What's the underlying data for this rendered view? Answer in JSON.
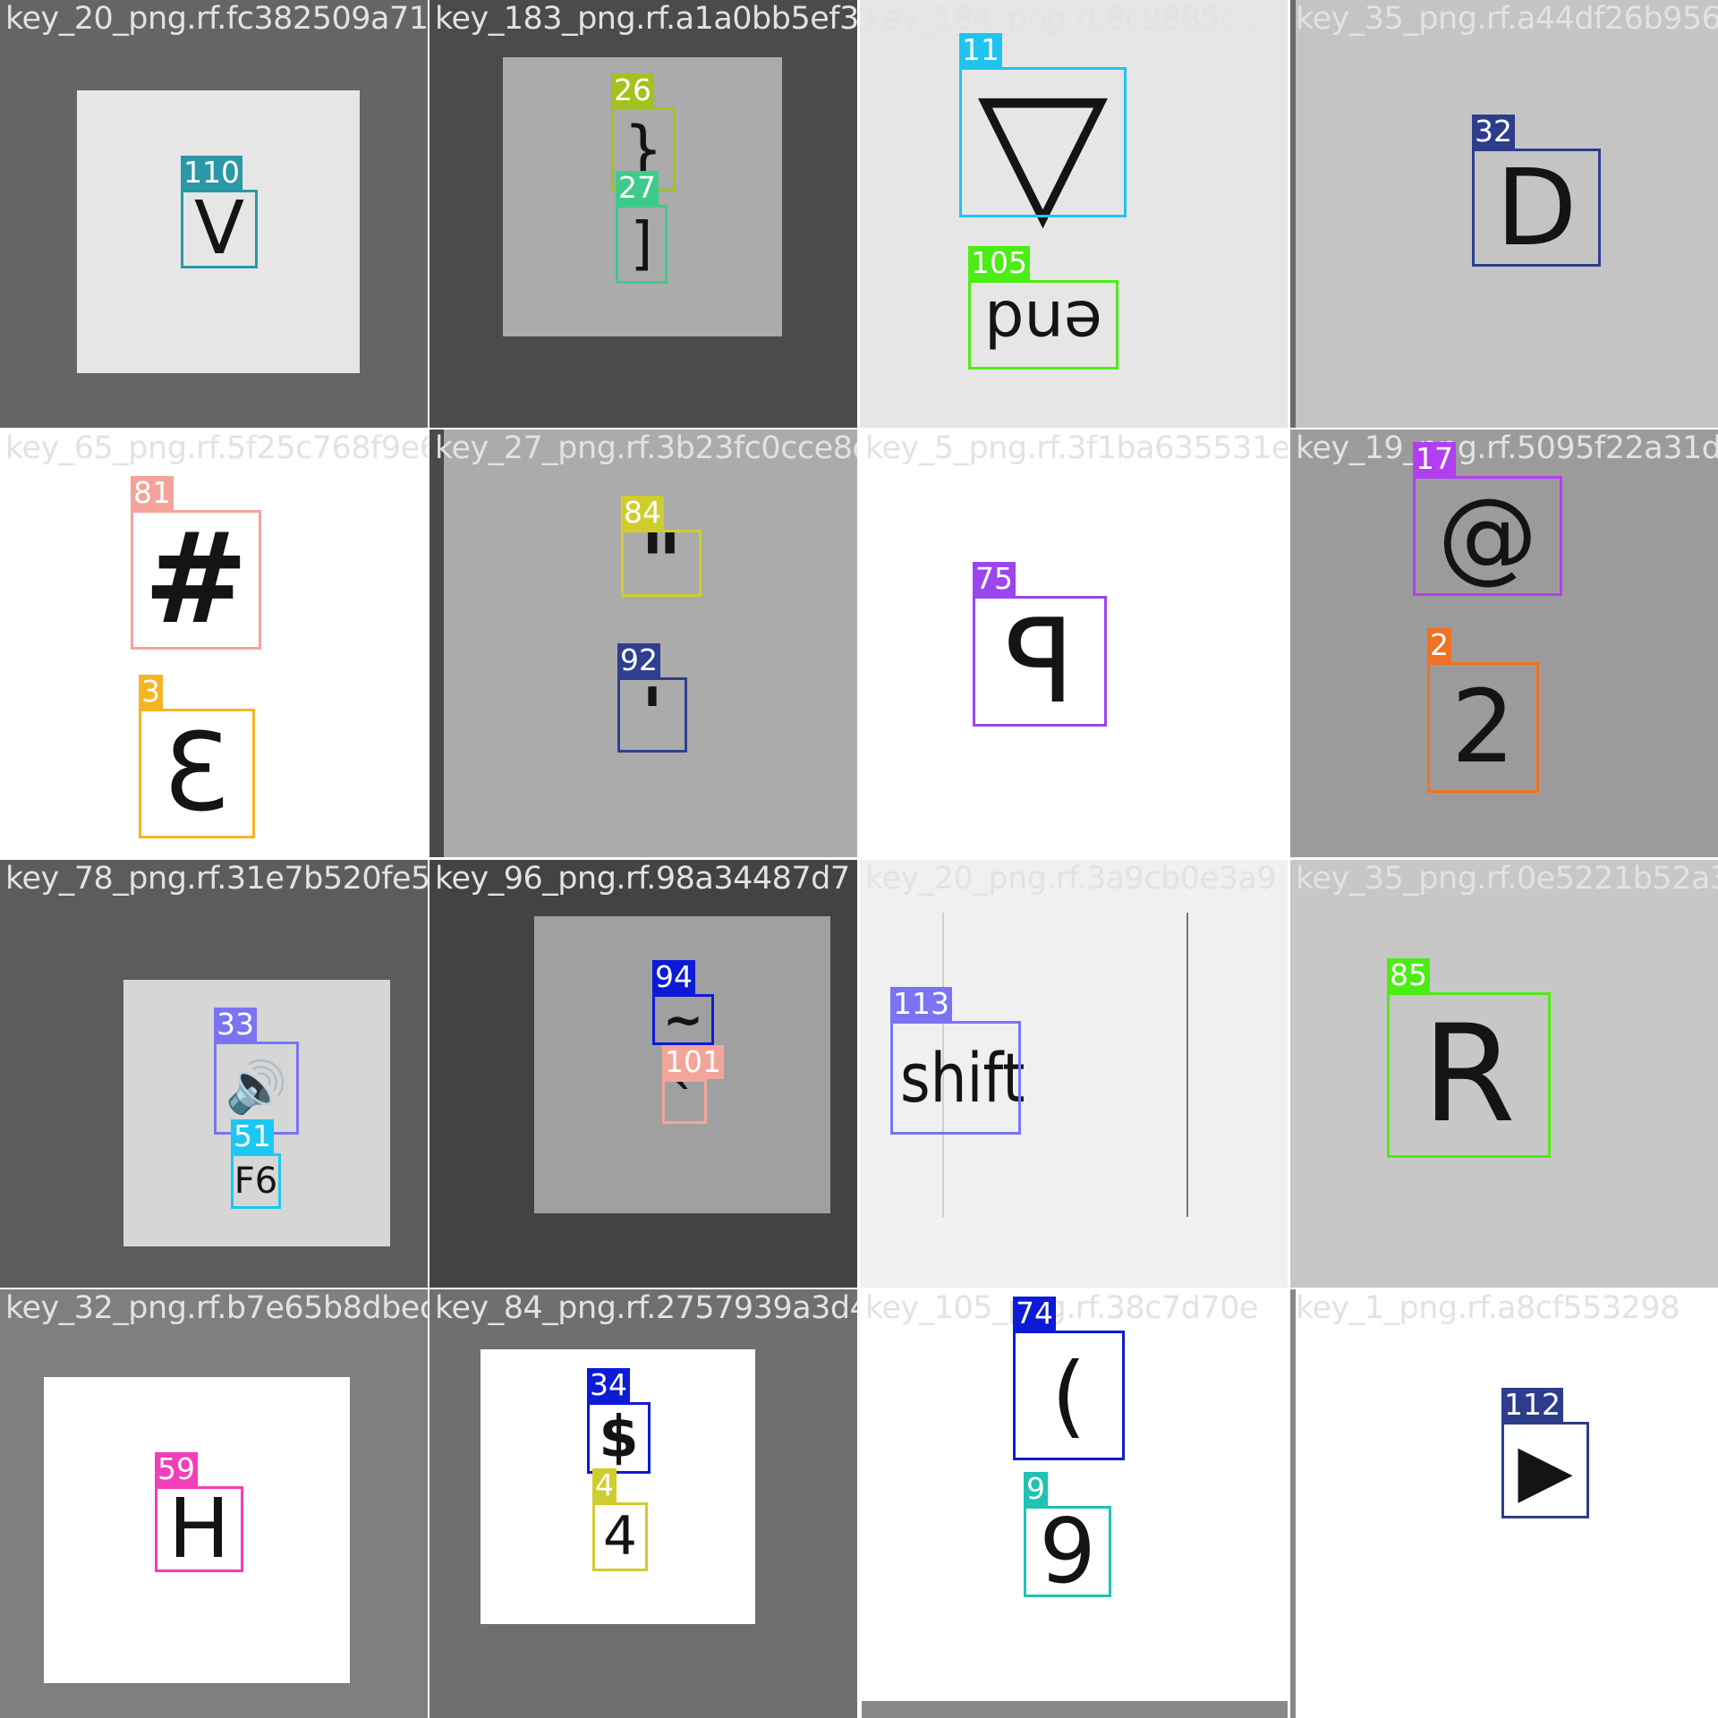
{
  "tiles": [
    {
      "file": "key_20_png.rf.fc382509a71d",
      "detections": [
        {
          "id": "110",
          "glyph": "V",
          "color": "#2b98a8"
        }
      ]
    },
    {
      "file": "key_183_png.rf.a1a0bb5ef382a05f3204",
      "detections": [
        {
          "id": "26",
          "glyph": "}",
          "color": "#a3c21d"
        },
        {
          "id": "27",
          "glyph": "]",
          "color": "#3ecb8a"
        }
      ]
    },
    {
      "file": "key_184_png.rf.8c9885c...",
      "detections": [
        {
          "id": "11",
          "glyph": "▽",
          "color": "#1fc3f0"
        },
        {
          "id": "105",
          "glyph": "end",
          "color": "#4bed14"
        }
      ]
    },
    {
      "file": "key_35_png.rf.a44df26b9566",
      "detections": [
        {
          "id": "32",
          "glyph": "D",
          "color": "#2d3d8c"
        }
      ]
    },
    {
      "file": "key_65_png.rf.5f25c768f9e6",
      "detections": [
        {
          "id": "81",
          "glyph": "#",
          "color": "#f5a39a"
        },
        {
          "id": "3",
          "glyph": "3",
          "color": "#f5b523"
        }
      ]
    },
    {
      "file": "key_27_png.rf.3b23fc0cce8d",
      "detections": [
        {
          "id": "84",
          "glyph": "\"",
          "color": "#cfcd2e"
        },
        {
          "id": "92",
          "glyph": "'",
          "color": "#2e3f8f"
        }
      ]
    },
    {
      "file": "key_5_png.rf.3f1ba635531e",
      "detections": [
        {
          "id": "75",
          "glyph": "P",
          "color": "#9b45ed"
        }
      ]
    },
    {
      "file": "key_19_png.rf.5095f22a31d",
      "detections": [
        {
          "id": "17",
          "glyph": "@",
          "color": "#b23ef2"
        },
        {
          "id": "2",
          "glyph": "2",
          "color": "#f07120"
        }
      ]
    },
    {
      "file": "key_78_png.rf.31e7b520fe5d",
      "detections": [
        {
          "id": "33",
          "glyph": "🔊",
          "color": "#7a74f2"
        },
        {
          "id": "51",
          "glyph": "F6",
          "color": "#1cc8f2"
        }
      ]
    },
    {
      "file": "key_96_png.rf.98a34487d7",
      "detections": [
        {
          "id": "94",
          "glyph": "~",
          "color": "#0d1ad6"
        },
        {
          "id": "101",
          "glyph": "`",
          "color": "#f3a59a"
        }
      ]
    },
    {
      "file": "key_20_png.rf.3a9cb0e3a9",
      "detections": [
        {
          "id": "113",
          "glyph": "shift",
          "color": "#7a74f2"
        }
      ]
    },
    {
      "file": "key_35_png.rf.0e5221b52a3",
      "detections": [
        {
          "id": "85",
          "glyph": "R",
          "color": "#4bed14"
        }
      ]
    },
    {
      "file": "key_32_png.rf.b7e65b8dbec",
      "detections": [
        {
          "id": "59",
          "glyph": "H",
          "color": "#f23eb8"
        }
      ]
    },
    {
      "file": "key_84_png.rf.2757939a3d48a",
      "detections": [
        {
          "id": "34",
          "glyph": "$",
          "color": "#0d1ad6"
        },
        {
          "id": "4",
          "glyph": "4",
          "color": "#cfcd2e"
        }
      ]
    },
    {
      "file": "key_105_png.rf.38c7d70e",
      "detections": [
        {
          "id": "74",
          "glyph": "(",
          "color": "#0d1ad6"
        },
        {
          "id": "9",
          "glyph": "9",
          "color": "#1fc2b4"
        }
      ]
    },
    {
      "file": "key_1_png.rf.a8cf553298",
      "detections": [
        {
          "id": "112",
          "glyph": "▶",
          "color": "#2d3d8c"
        }
      ]
    }
  ]
}
